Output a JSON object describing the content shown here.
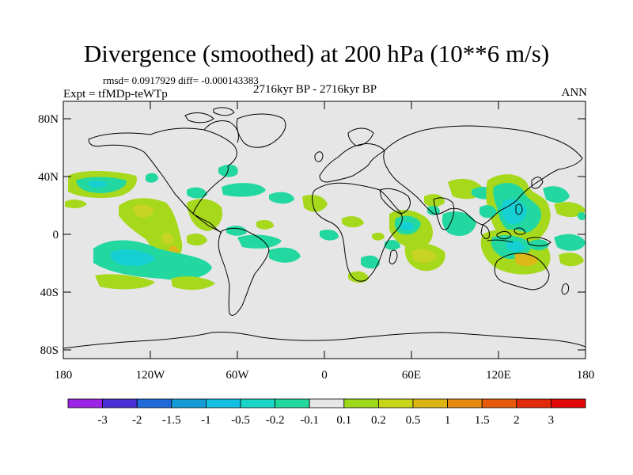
{
  "title": "Divergence (smoothed) at 200 hPa (10**6 m/s)",
  "stats": "rmsd= 0.0917929 diff= -0.000143383",
  "experiment": "Expt = tfMDp-teWTp",
  "period": "2716kyr BP - 2716kyr BP",
  "season": "ANN",
  "lat_labels": [
    "80N",
    "40N",
    "0",
    "40S",
    "80S"
  ],
  "lon_labels": [
    "180",
    "120W",
    "60W",
    "0",
    "60E",
    "120E",
    "180"
  ],
  "colorbar": {
    "labels": [
      "-3",
      "-2",
      "-1.5",
      "-1",
      "-0.5",
      "-0.2",
      "-0.1",
      "0.1",
      "0.2",
      "0.5",
      "1",
      "1.5",
      "2",
      "3"
    ],
    "colors": [
      "#9b24e6",
      "#4a2ed6",
      "#1f6ad8",
      "#159bd6",
      "#12bfe0",
      "#1ad6c8",
      "#22d89c",
      "#e6e6e6",
      "#9ed81a",
      "#c8d61a",
      "#dcb414",
      "#e68a10",
      "#e65a0c",
      "#e02a0a",
      "#e00808"
    ]
  },
  "colors": {
    "ocean": "#e6e6e6",
    "positive_weak": "#a6d81c",
    "positive_mid": "#c8d424",
    "positive_strong": "#dcb818",
    "negative_weak": "#22d8a0",
    "negative_mid": "#16cfd2"
  }
}
